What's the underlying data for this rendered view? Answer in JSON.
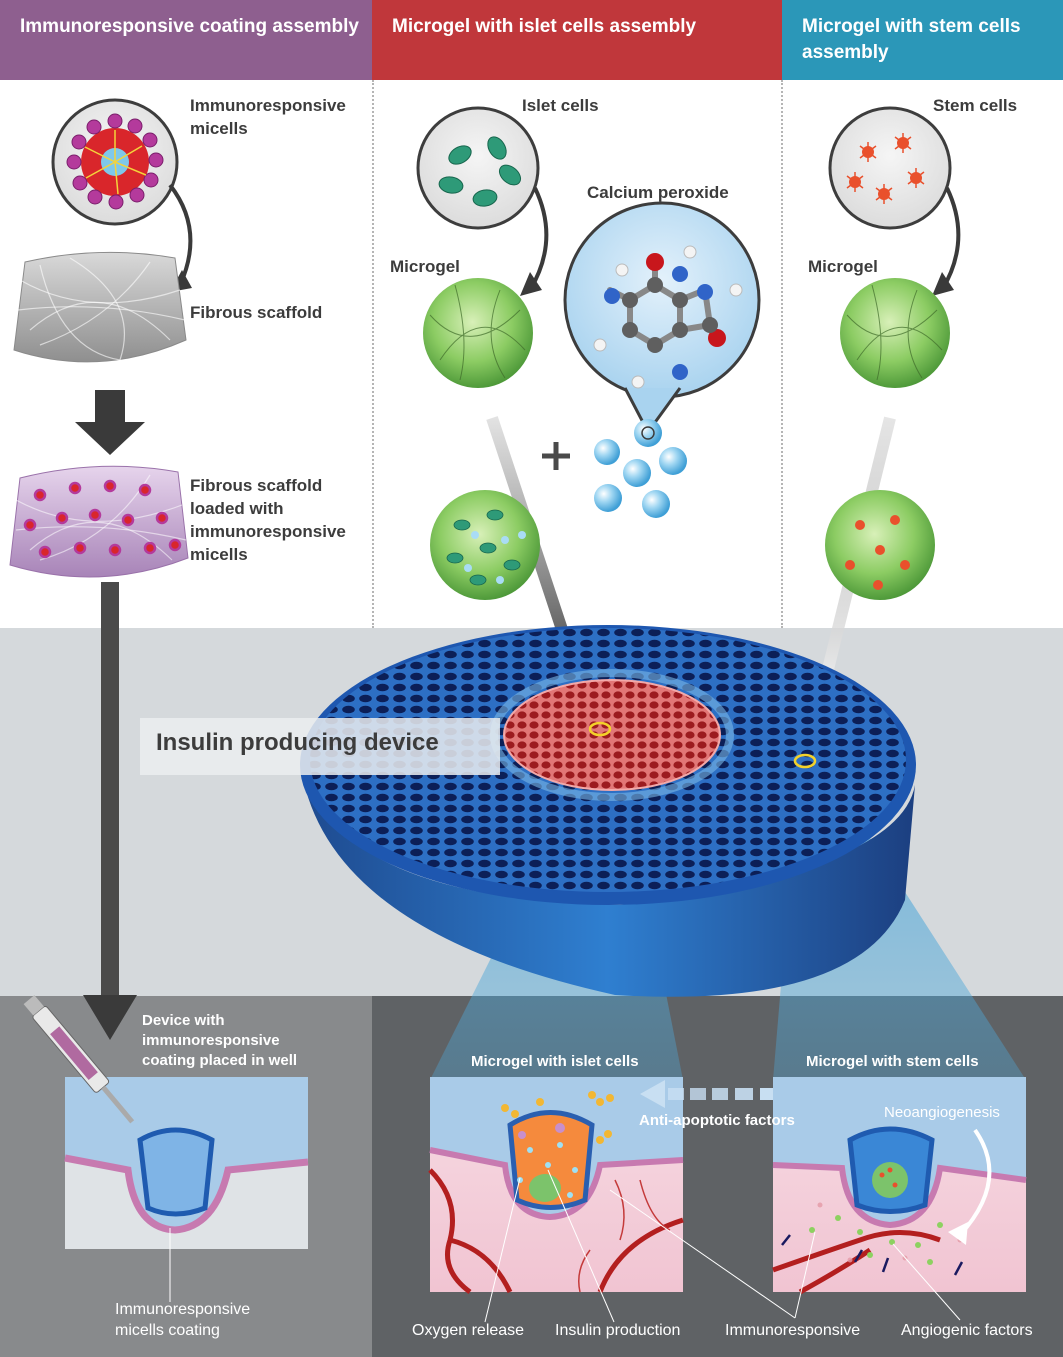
{
  "headers": [
    {
      "text": "Immunoresponsive coating assembly",
      "color": "#8e5f8f"
    },
    {
      "text": "Microgel with islet cells assembly",
      "color": "#c0373b"
    },
    {
      "text": "Microgel with stem cells assembly",
      "color": "#2b97b8"
    }
  ],
  "col1": {
    "micelles": "Immunoresponsive micells",
    "scaffold": "Fibrous scaffold",
    "loaded": "Fibrous scaffold loaded with immunoresponsive micells"
  },
  "col2": {
    "islet_cells": "Islet cells",
    "microgel": "Microgel",
    "calcium": "Calcium peroxide"
  },
  "col3": {
    "stem_cells": "Stem cells",
    "microgel": "Microgel"
  },
  "device_label": "Insulin producing device",
  "bottom": {
    "well_title": "Device with immunoresponsive coating placed in well",
    "coating_label": "Immunoresponsive micells coating",
    "islet_panel": "Microgel with islet cells",
    "stem_panel": "Microgel with stem cells",
    "anti_apoptotic": "Anti-apoptotic factors",
    "neoangiogenesis": "Neoangiogenesis",
    "oxygen": "Oxygen release",
    "insulin": "Insulin production",
    "immuno": "Immunoresponsive",
    "angiogenic": "Angiogenic factors"
  },
  "colors": {
    "device_blue": "#1f4e9c",
    "islet_red": "#b3262b",
    "gray_band": "#d5d9dc",
    "dark_panel": "#5f6265",
    "gel_green": "#7fc35a"
  }
}
